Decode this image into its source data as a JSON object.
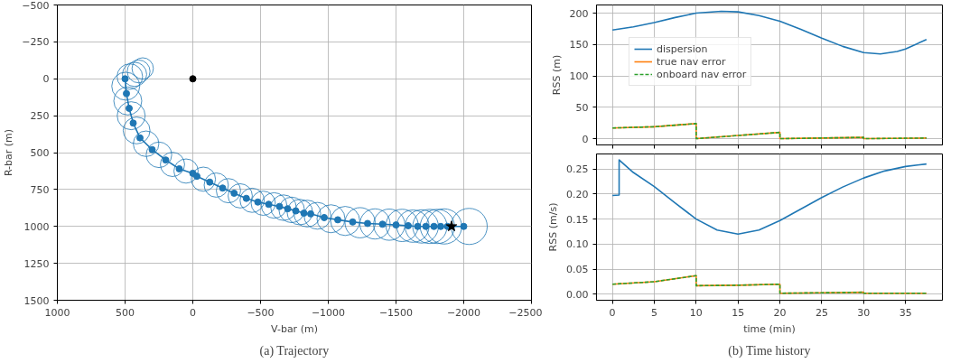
{
  "chart_data": [
    {
      "type": "scatter",
      "xlabel": "V-bar (m)",
      "ylabel": "R-bar (m)",
      "xlim": [
        1000,
        -2500
      ],
      "ylim": [
        1500,
        -500
      ],
      "xticks": [
        1000,
        500,
        0,
        -500,
        -1000,
        -1500,
        -2000,
        -2500
      ],
      "yticks": [
        -500,
        -250,
        0,
        250,
        500,
        750,
        1000,
        1250,
        1500
      ],
      "grid": true,
      "annotations": [
        "(a) Trajectory"
      ],
      "series": [
        {
          "type": "bubble",
          "color": "#1f77b4",
          "x": [
            370,
            400,
            430,
            465,
            495,
            480,
            455,
            415,
            345,
            250,
            150,
            50,
            -78,
            -173,
            -263,
            -350,
            -438,
            -520,
            -600,
            -670,
            -730,
            -790,
            -845,
            -920,
            -1020,
            -1125,
            -1235,
            -1345,
            -1450,
            -1545,
            -1625,
            -1690,
            -1750,
            -1805,
            -1855,
            -2040
          ],
          "values": [
            -70,
            -50,
            -30,
            -15,
            50,
            150,
            250,
            350,
            440,
            515,
            580,
            625,
            680,
            720,
            758,
            793,
            823,
            843,
            858,
            873,
            888,
            903,
            913,
            928,
            948,
            963,
            975,
            983,
            988,
            993,
            998,
            1000,
            1000,
            1000,
            1000,
            1000
          ],
          "sizes": [
            0.35,
            0.4,
            0.45,
            0.5,
            0.6,
            0.6,
            0.6,
            0.55,
            0.5,
            0.5,
            0.45,
            0.45,
            0.45,
            0.45,
            0.45,
            0.45,
            0.45,
            0.45,
            0.5,
            0.5,
            0.5,
            0.5,
            0.55,
            0.55,
            0.6,
            0.65,
            0.7,
            0.7,
            0.75,
            0.8,
            0.8,
            0.85,
            0.9,
            0.9,
            0.95,
            1
          ]
        },
        {
          "type": "line",
          "marker": "circle",
          "color": "#1f77b4",
          "x": [
            500,
            490,
            470,
            440,
            390,
            300,
            200,
            100,
            0,
            -30,
            -125,
            -220,
            -305,
            -395,
            -480,
            -560,
            -640,
            -700,
            -760,
            -820,
            -870,
            -970,
            -1070,
            -1180,
            -1290,
            -1400,
            -1500,
            -1590,
            -1660,
            -1720,
            -1780,
            -1830,
            -1880,
            -2000
          ],
          "values": [
            0,
            100,
            200,
            300,
            400,
            480,
            550,
            610,
            640,
            660,
            700,
            740,
            775,
            810,
            835,
            850,
            865,
            880,
            895,
            910,
            915,
            940,
            955,
            970,
            980,
            985,
            990,
            995,
            1000,
            1000,
            1000,
            1000,
            1000,
            1000
          ]
        },
        {
          "type": "scatter",
          "marker": "circle",
          "color": "#000000",
          "x": [
            0
          ],
          "values": [
            0
          ]
        },
        {
          "type": "scatter",
          "marker": "star",
          "color": "#000000",
          "x": [
            -1910
          ],
          "values": [
            1000
          ]
        }
      ]
    },
    {
      "type": "line",
      "ylabel": "RSS (m)",
      "xlim": [
        -1.9,
        39.4
      ],
      "ylim": [
        -10,
        213
      ],
      "xticks": [
        0,
        5,
        10,
        15,
        20,
        25,
        30,
        35
      ],
      "yticks": [
        0,
        50,
        100,
        150,
        200
      ],
      "grid": true,
      "legend": "top left",
      "tick_labels": "y",
      "series": [
        {
          "name": "dispersion",
          "color": "#1f77b4",
          "x": [
            0,
            2.5,
            5,
            7.5,
            10,
            13,
            15,
            17.5,
            20,
            22.5,
            25,
            27.5,
            30,
            32,
            34,
            35,
            37.5
          ],
          "values": [
            173,
            178,
            185,
            193,
            200,
            203,
            202,
            196,
            187,
            174,
            160,
            147,
            137,
            135,
            139,
            143,
            158
          ]
        },
        {
          "name": "true nav error",
          "color": "#ff7f0e",
          "x": [
            0,
            5,
            10,
            10,
            15,
            20,
            20,
            25,
            30,
            30,
            37.5
          ],
          "values": [
            17,
            19,
            24,
            0,
            5,
            10,
            0,
            1,
            2,
            0,
            1
          ]
        },
        {
          "name": "onboard nav error",
          "color": "#2ca02c",
          "line_style": "dashed",
          "x": [
            0,
            5,
            10,
            10,
            15,
            20,
            20,
            25,
            30,
            30,
            37.5
          ],
          "values": [
            17,
            19,
            24,
            0,
            5,
            10,
            0,
            1,
            2,
            0,
            1
          ]
        }
      ]
    },
    {
      "type": "line",
      "xlabel": "time (min)",
      "ylabel": "RSS (m/s)",
      "xlim": [
        -1.9,
        39.4
      ],
      "ylim": [
        -0.012,
        0.28
      ],
      "xticks": [
        0,
        5,
        10,
        15,
        20,
        25,
        30,
        35
      ],
      "yticks": [
        {
          "value": 0,
          "label": "0.00"
        },
        {
          "value": 0.05,
          "label": "0.05"
        },
        {
          "value": 0.1,
          "label": "0.10"
        },
        {
          "value": 0.15,
          "label": "0.15"
        },
        {
          "value": 0.2,
          "label": "0.20"
        },
        {
          "value": 0.25,
          "label": "0.25"
        }
      ],
      "grid": true,
      "annotations": [
        "(b) Time history"
      ],
      "series": [
        {
          "color": "#1f77b4",
          "x": [
            0,
            0.8,
            0.8,
            2.5,
            5,
            7.5,
            10,
            12.5,
            15,
            17.5,
            20,
            22.5,
            25,
            27.5,
            30,
            32.5,
            35,
            37.5
          ],
          "values": [
            0.197,
            0.198,
            0.268,
            0.243,
            0.215,
            0.182,
            0.15,
            0.128,
            0.12,
            0.128,
            0.147,
            0.17,
            0.193,
            0.214,
            0.232,
            0.246,
            0.255,
            0.26
          ]
        },
        {
          "color": "#ff7f0e",
          "x": [
            0,
            5,
            10,
            10,
            15,
            20,
            20,
            25,
            30,
            30,
            37.5
          ],
          "values": [
            0.02,
            0.025,
            0.037,
            0.017,
            0.018,
            0.02,
            0.002,
            0.003,
            0.004,
            0.002,
            0.002
          ]
        },
        {
          "color": "#2ca02c",
          "line_style": "dashed",
          "x": [
            0,
            5,
            10,
            10,
            15,
            20,
            20,
            25,
            30,
            30,
            37.5
          ],
          "values": [
            0.02,
            0.025,
            0.037,
            0.017,
            0.018,
            0.02,
            0.002,
            0.003,
            0.004,
            0.002,
            0.002
          ]
        }
      ]
    }
  ]
}
